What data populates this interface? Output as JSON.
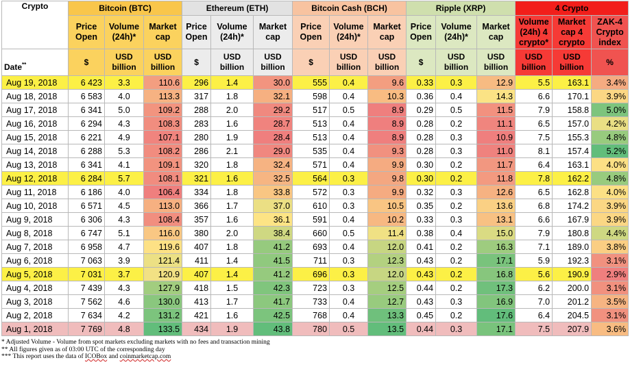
{
  "header": {
    "crypto_label": "Crypto",
    "date_label": "Date",
    "date_mark": "**",
    "groups": [
      "Bitcoin (BTC)",
      "Ethereum (ETH)",
      "Bitcoin Cash (BCH)",
      "Ripple (XRP)",
      "4 Crypto"
    ],
    "coin_cols": [
      "Price Open",
      "Volume (24h)*",
      "Market cap"
    ],
    "coin_units": [
      "$",
      "USD billion",
      "USD billion"
    ],
    "c4_cols": [
      "Volume (24h) 4 crypto*",
      "Market cap 4 crypto",
      "ZAK-4 Crypto index"
    ],
    "c4_units": [
      "USD billion",
      "USD billion",
      "%"
    ]
  },
  "rows": [
    {
      "date": "Aug 19, 2018",
      "btc": [
        "6 423",
        "3.3",
        "110.6"
      ],
      "eth": [
        "296",
        "1.4",
        "30.0"
      ],
      "bch": [
        "555",
        "0.4",
        "9.6"
      ],
      "xrp": [
        "0.33",
        "0.3",
        "12.9"
      ],
      "c4": [
        "5.5",
        "163.1",
        "3.4%"
      ]
    },
    {
      "date": "Aug 18, 2018",
      "btc": [
        "6 583",
        "4.0",
        "113.3"
      ],
      "eth": [
        "317",
        "1.8",
        "32.1"
      ],
      "bch": [
        "598",
        "0.4",
        "10.3"
      ],
      "xrp": [
        "0.36",
        "0.4",
        "14.3"
      ],
      "c4": [
        "6.6",
        "170.1",
        "3.9%"
      ]
    },
    {
      "date": "Aug 17, 2018",
      "btc": [
        "6 341",
        "5.0",
        "109.2"
      ],
      "eth": [
        "288",
        "2.0",
        "29.2"
      ],
      "bch": [
        "517",
        "0.5",
        "8.9"
      ],
      "xrp": [
        "0.29",
        "0.5",
        "11.5"
      ],
      "c4": [
        "7.9",
        "158.8",
        "5.0%"
      ]
    },
    {
      "date": "Aug 16, 2018",
      "btc": [
        "6 294",
        "4.3",
        "108.3"
      ],
      "eth": [
        "283",
        "1.6",
        "28.7"
      ],
      "bch": [
        "513",
        "0.4",
        "8.9"
      ],
      "xrp": [
        "0.28",
        "0.2",
        "11.1"
      ],
      "c4": [
        "6.5",
        "157.0",
        "4.2%"
      ]
    },
    {
      "date": "Aug 15, 2018",
      "btc": [
        "6 221",
        "4.9",
        "107.1"
      ],
      "eth": [
        "280",
        "1.9",
        "28.4"
      ],
      "bch": [
        "513",
        "0.4",
        "8.9"
      ],
      "xrp": [
        "0.28",
        "0.3",
        "10.9"
      ],
      "c4": [
        "7.5",
        "155.3",
        "4.8%"
      ]
    },
    {
      "date": "Aug 14, 2018",
      "btc": [
        "6 288",
        "5.3",
        "108.2"
      ],
      "eth": [
        "286",
        "2.1",
        "29.0"
      ],
      "bch": [
        "535",
        "0.4",
        "9.3"
      ],
      "xrp": [
        "0.28",
        "0.3",
        "11.0"
      ],
      "c4": [
        "8.1",
        "157.4",
        "5.2%"
      ]
    },
    {
      "date": "Aug 13, 2018",
      "btc": [
        "6 341",
        "4.1",
        "109.1"
      ],
      "eth": [
        "320",
        "1.8",
        "32.4"
      ],
      "bch": [
        "571",
        "0.4",
        "9.9"
      ],
      "xrp": [
        "0.30",
        "0.2",
        "11.7"
      ],
      "c4": [
        "6.4",
        "163.1",
        "4.0%"
      ]
    },
    {
      "date": "Aug 12, 2018",
      "btc": [
        "6 284",
        "5.7",
        "108.1"
      ],
      "eth": [
        "321",
        "1.6",
        "32.5"
      ],
      "bch": [
        "564",
        "0.3",
        "9.8"
      ],
      "xrp": [
        "0.30",
        "0.2",
        "11.8"
      ],
      "c4": [
        "7.8",
        "162.2",
        "4.8%"
      ]
    },
    {
      "date": "Aug 11, 2018",
      "btc": [
        "6 186",
        "4.0",
        "106.4"
      ],
      "eth": [
        "334",
        "1.8",
        "33.8"
      ],
      "bch": [
        "572",
        "0.3",
        "9.9"
      ],
      "xrp": [
        "0.32",
        "0.3",
        "12.6"
      ],
      "c4": [
        "6.5",
        "162.8",
        "4.0%"
      ]
    },
    {
      "date": "Aug 10, 2018",
      "btc": [
        "6 571",
        "4.5",
        "113.0"
      ],
      "eth": [
        "366",
        "1.7",
        "37.0"
      ],
      "bch": [
        "610",
        "0.3",
        "10.5"
      ],
      "xrp": [
        "0.35",
        "0.2",
        "13.6"
      ],
      "c4": [
        "6.8",
        "174.2",
        "3.9%"
      ]
    },
    {
      "date": "Aug 9, 2018",
      "btc": [
        "6 306",
        "4.3",
        "108.4"
      ],
      "eth": [
        "357",
        "1.6",
        "36.1"
      ],
      "bch": [
        "591",
        "0.4",
        "10.2"
      ],
      "xrp": [
        "0.33",
        "0.3",
        "13.1"
      ],
      "c4": [
        "6.6",
        "167.9",
        "3.9%"
      ]
    },
    {
      "date": "Aug 8, 2018",
      "btc": [
        "6 747",
        "5.1",
        "116.0"
      ],
      "eth": [
        "380",
        "2.0",
        "38.4"
      ],
      "bch": [
        "660",
        "0.5",
        "11.4"
      ],
      "xrp": [
        "0.38",
        "0.4",
        "15.0"
      ],
      "c4": [
        "7.9",
        "180.8",
        "4.4%"
      ]
    },
    {
      "date": "Aug 7, 2018",
      "btc": [
        "6 958",
        "4.7",
        "119.6"
      ],
      "eth": [
        "407",
        "1.8",
        "41.2"
      ],
      "bch": [
        "693",
        "0.4",
        "12.0"
      ],
      "xrp": [
        "0.41",
        "0.2",
        "16.3"
      ],
      "c4": [
        "7.1",
        "189.0",
        "3.8%"
      ]
    },
    {
      "date": "Aug 6, 2018",
      "btc": [
        "7 063",
        "3.9",
        "121.4"
      ],
      "eth": [
        "411",
        "1.4",
        "41.5"
      ],
      "bch": [
        "711",
        "0.3",
        "12.3"
      ],
      "xrp": [
        "0.43",
        "0.2",
        "17.1"
      ],
      "c4": [
        "5.9",
        "192.3",
        "3.1%"
      ]
    },
    {
      "date": "Aug 5, 2018",
      "btc": [
        "7 031",
        "3.7",
        "120.9"
      ],
      "eth": [
        "407",
        "1.4",
        "41.2"
      ],
      "bch": [
        "696",
        "0.3",
        "12.0"
      ],
      "xrp": [
        "0.43",
        "0.2",
        "16.8"
      ],
      "c4": [
        "5.6",
        "190.9",
        "2.9%"
      ]
    },
    {
      "date": "Aug 4, 2018",
      "btc": [
        "7 439",
        "4.3",
        "127.9"
      ],
      "eth": [
        "418",
        "1.5",
        "42.3"
      ],
      "bch": [
        "723",
        "0.3",
        "12.5"
      ],
      "xrp": [
        "0.44",
        "0.2",
        "17.3"
      ],
      "c4": [
        "6.2",
        "200.0",
        "3.1%"
      ]
    },
    {
      "date": "Aug 3, 2018",
      "btc": [
        "7 562",
        "4.6",
        "130.0"
      ],
      "eth": [
        "413",
        "1.7",
        "41.7"
      ],
      "bch": [
        "733",
        "0.4",
        "12.7"
      ],
      "xrp": [
        "0.43",
        "0.3",
        "16.9"
      ],
      "c4": [
        "7.0",
        "201.2",
        "3.5%"
      ]
    },
    {
      "date": "Aug 2, 2018",
      "btc": [
        "7 634",
        "4.2",
        "131.2"
      ],
      "eth": [
        "421",
        "1.6",
        "42.5"
      ],
      "bch": [
        "768",
        "0.4",
        "13.3"
      ],
      "xrp": [
        "0.45",
        "0.2",
        "17.6"
      ],
      "c4": [
        "6.4",
        "204.5",
        "3.1%"
      ]
    },
    {
      "date": "Aug 1, 2018",
      "btc": [
        "7 769",
        "4.8",
        "133.5"
      ],
      "eth": [
        "434",
        "1.9",
        "43.8"
      ],
      "bch": [
        "780",
        "0.5",
        "13.5"
      ],
      "xrp": [
        "0.44",
        "0.3",
        "17.1"
      ],
      "c4": [
        "7.5",
        "207.9",
        "3.6%"
      ]
    }
  ],
  "highlight_rows": {
    "yellow": [
      0,
      7,
      14
    ],
    "pink": [
      18
    ]
  },
  "heat_colors": {
    "low": "#ef7f7e",
    "mid": "#fde485",
    "high": "#62bd7b"
  },
  "notes": [
    [
      "* Adjusted Volume - Volume from spot markets excluding markets with no fees and transaction mining"
    ],
    [
      "** All figures given as of 03:00 UTC of the corresponding day"
    ],
    [
      "*** This report uses the data of ",
      "ICOBox",
      " and ",
      "coinmarketcap.com"
    ]
  ]
}
